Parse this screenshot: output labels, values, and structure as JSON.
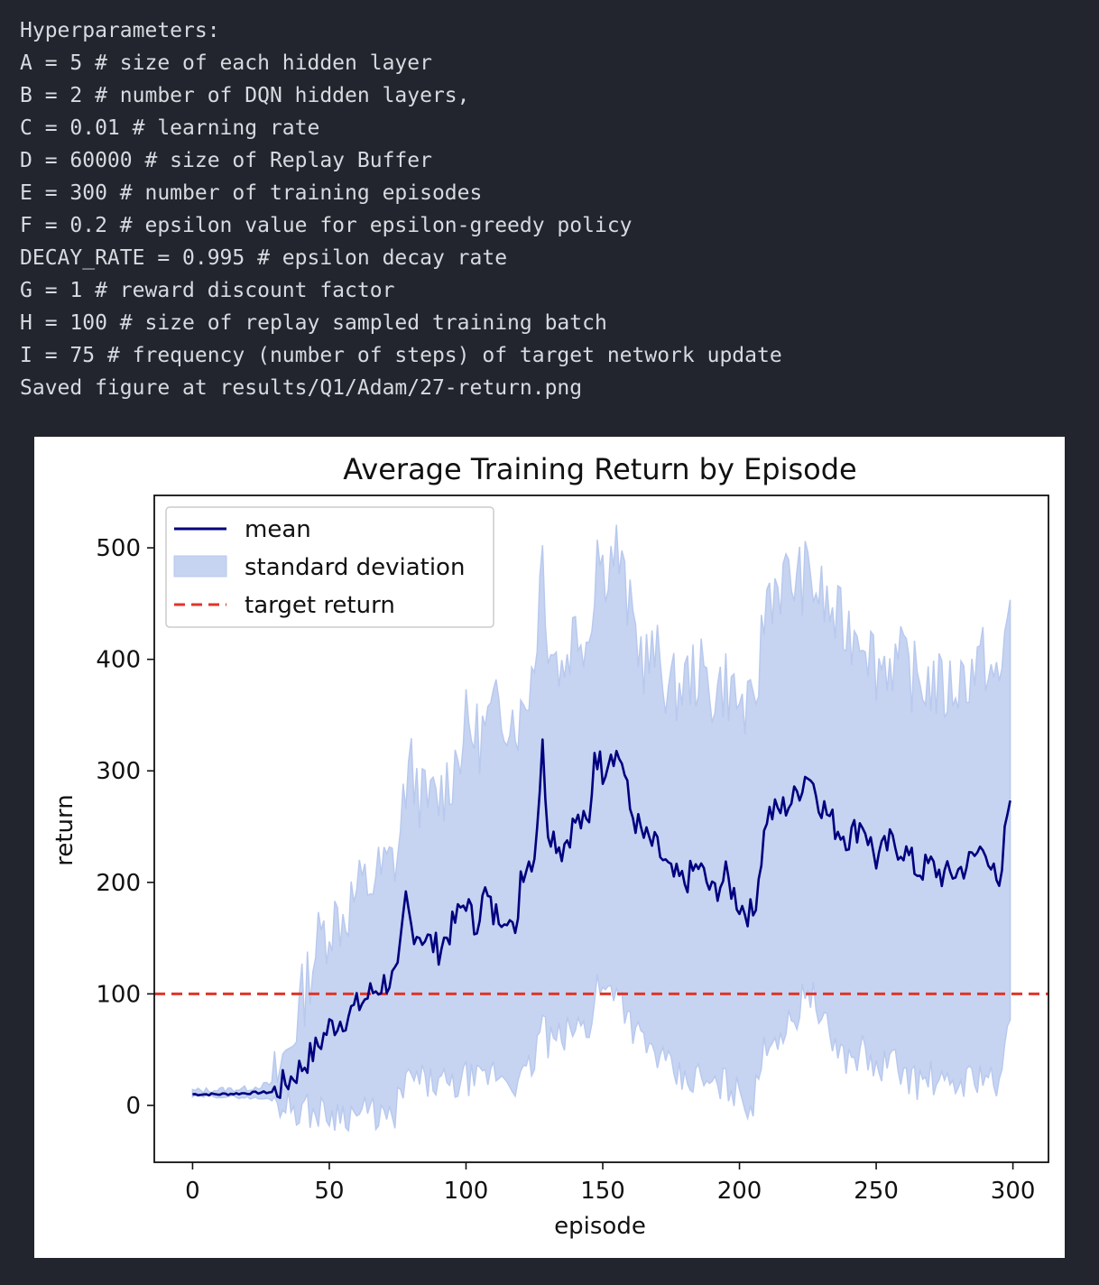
{
  "console": {
    "lines": [
      "Hyperparameters:",
      "A = 5 # size of each hidden layer",
      "B = 2 # number of DQN hidden layers,",
      "C = 0.01 # learning rate",
      "D = 60000 # size of Replay Buffer",
      "E = 300 # number of training episodes",
      "F = 0.2 # epsilon value for epsilon-greedy policy",
      "DECAY_RATE = 0.995 # epsilon decay rate",
      "G = 1 # reward discount factor",
      "H = 100 # size of replay sampled training batch",
      "I = 75 # frequency (number of steps) of target network update",
      "Saved figure at results/Q1/Adam/27-return.png"
    ]
  },
  "chart_data": {
    "type": "line",
    "title": "Average Training Return by Episode",
    "xlabel": "episode",
    "ylabel": "return",
    "xlim": [
      -14,
      313
    ],
    "ylim": [
      -51,
      547
    ],
    "xticks": [
      0,
      50,
      100,
      150,
      200,
      250,
      300
    ],
    "yticks": [
      0,
      100,
      200,
      300,
      400,
      500
    ],
    "grid": false,
    "legend_position": "top-left",
    "legend": [
      "mean",
      "standard deviation",
      "target return"
    ],
    "colors": {
      "mean": "#00007f",
      "std": "#c6d4f1",
      "std_edge": "#b9c9ee",
      "target": "#e0352a"
    },
    "target_return": 100,
    "mean_keypoints": [
      [
        0,
        10
      ],
      [
        10,
        10
      ],
      [
        20,
        11
      ],
      [
        30,
        12
      ],
      [
        35,
        22
      ],
      [
        40,
        35
      ],
      [
        45,
        50
      ],
      [
        50,
        70
      ],
      [
        55,
        78
      ],
      [
        60,
        88
      ],
      [
        65,
        100
      ],
      [
        70,
        110
      ],
      [
        75,
        115
      ],
      [
        78,
        185
      ],
      [
        80,
        160
      ],
      [
        85,
        150
      ],
      [
        90,
        140
      ],
      [
        95,
        160
      ],
      [
        100,
        185
      ],
      [
        103,
        160
      ],
      [
        107,
        190
      ],
      [
        110,
        170
      ],
      [
        115,
        175
      ],
      [
        118,
        145
      ],
      [
        120,
        210
      ],
      [
        125,
        225
      ],
      [
        128,
        320
      ],
      [
        130,
        250
      ],
      [
        135,
        230
      ],
      [
        140,
        255
      ],
      [
        145,
        250
      ],
      [
        147,
        320
      ],
      [
        150,
        300
      ],
      [
        153,
        320
      ],
      [
        157,
        310
      ],
      [
        160,
        265
      ],
      [
        165,
        240
      ],
      [
        170,
        230
      ],
      [
        175,
        205
      ],
      [
        180,
        200
      ],
      [
        185,
        215
      ],
      [
        190,
        190
      ],
      [
        195,
        205
      ],
      [
        200,
        180
      ],
      [
        205,
        170
      ],
      [
        210,
        260
      ],
      [
        215,
        265
      ],
      [
        220,
        275
      ],
      [
        225,
        300
      ],
      [
        230,
        270
      ],
      [
        235,
        250
      ],
      [
        240,
        240
      ],
      [
        245,
        255
      ],
      [
        250,
        220
      ],
      [
        255,
        235
      ],
      [
        260,
        230
      ],
      [
        265,
        210
      ],
      [
        270,
        215
      ],
      [
        275,
        205
      ],
      [
        280,
        210
      ],
      [
        285,
        220
      ],
      [
        290,
        235
      ],
      [
        295,
        185
      ],
      [
        297,
        240
      ],
      [
        299,
        285
      ]
    ],
    "std_upper_keypoints": [
      [
        0,
        13
      ],
      [
        10,
        14
      ],
      [
        20,
        15
      ],
      [
        30,
        20
      ],
      [
        35,
        50
      ],
      [
        40,
        95
      ],
      [
        45,
        140
      ],
      [
        50,
        165
      ],
      [
        55,
        170
      ],
      [
        60,
        190
      ],
      [
        65,
        200
      ],
      [
        70,
        210
      ],
      [
        75,
        225
      ],
      [
        78,
        290
      ],
      [
        80,
        300
      ],
      [
        85,
        270
      ],
      [
        90,
        275
      ],
      [
        95,
        300
      ],
      [
        100,
        340
      ],
      [
        105,
        330
      ],
      [
        110,
        350
      ],
      [
        115,
        355
      ],
      [
        120,
        345
      ],
      [
        125,
        400
      ],
      [
        128,
        500
      ],
      [
        130,
        420
      ],
      [
        135,
        390
      ],
      [
        140,
        430
      ],
      [
        145,
        420
      ],
      [
        148,
        505
      ],
      [
        150,
        480
      ],
      [
        155,
        500
      ],
      [
        160,
        440
      ],
      [
        165,
        400
      ],
      [
        170,
        400
      ],
      [
        175,
        370
      ],
      [
        180,
        380
      ],
      [
        185,
        390
      ],
      [
        190,
        370
      ],
      [
        195,
        380
      ],
      [
        200,
        360
      ],
      [
        205,
        345
      ],
      [
        210,
        460
      ],
      [
        215,
        470
      ],
      [
        220,
        470
      ],
      [
        225,
        475
      ],
      [
        230,
        455
      ],
      [
        235,
        435
      ],
      [
        240,
        425
      ],
      [
        245,
        430
      ],
      [
        250,
        395
      ],
      [
        255,
        400
      ],
      [
        260,
        395
      ],
      [
        265,
        380
      ],
      [
        270,
        380
      ],
      [
        275,
        370
      ],
      [
        280,
        380
      ],
      [
        285,
        390
      ],
      [
        290,
        400
      ],
      [
        295,
        370
      ],
      [
        299,
        460
      ]
    ],
    "std_lower_keypoints": [
      [
        0,
        8
      ],
      [
        10,
        8
      ],
      [
        20,
        7
      ],
      [
        30,
        5
      ],
      [
        35,
        0
      ],
      [
        40,
        -3
      ],
      [
        45,
        -6
      ],
      [
        50,
        -8
      ],
      [
        55,
        -6
      ],
      [
        60,
        -8
      ],
      [
        65,
        -6
      ],
      [
        70,
        -10
      ],
      [
        73,
        -18
      ],
      [
        75,
        5
      ],
      [
        80,
        25
      ],
      [
        85,
        20
      ],
      [
        90,
        20
      ],
      [
        95,
        15
      ],
      [
        100,
        25
      ],
      [
        105,
        20
      ],
      [
        110,
        30
      ],
      [
        115,
        25
      ],
      [
        120,
        20
      ],
      [
        125,
        40
      ],
      [
        128,
        80
      ],
      [
        130,
        55
      ],
      [
        135,
        60
      ],
      [
        140,
        70
      ],
      [
        145,
        70
      ],
      [
        148,
        110
      ],
      [
        150,
        100
      ],
      [
        155,
        110
      ],
      [
        160,
        75
      ],
      [
        165,
        55
      ],
      [
        170,
        45
      ],
      [
        175,
        30
      ],
      [
        180,
        20
      ],
      [
        185,
        25
      ],
      [
        190,
        15
      ],
      [
        195,
        20
      ],
      [
        200,
        10
      ],
      [
        205,
        0
      ],
      [
        210,
        60
      ],
      [
        215,
        65
      ],
      [
        220,
        75
      ],
      [
        225,
        110
      ],
      [
        230,
        75
      ],
      [
        235,
        55
      ],
      [
        240,
        40
      ],
      [
        245,
        50
      ],
      [
        250,
        30
      ],
      [
        255,
        40
      ],
      [
        260,
        30
      ],
      [
        265,
        20
      ],
      [
        270,
        25
      ],
      [
        275,
        15
      ],
      [
        280,
        20
      ],
      [
        285,
        25
      ],
      [
        290,
        30
      ],
      [
        295,
        10
      ],
      [
        299,
        85
      ]
    ]
  }
}
